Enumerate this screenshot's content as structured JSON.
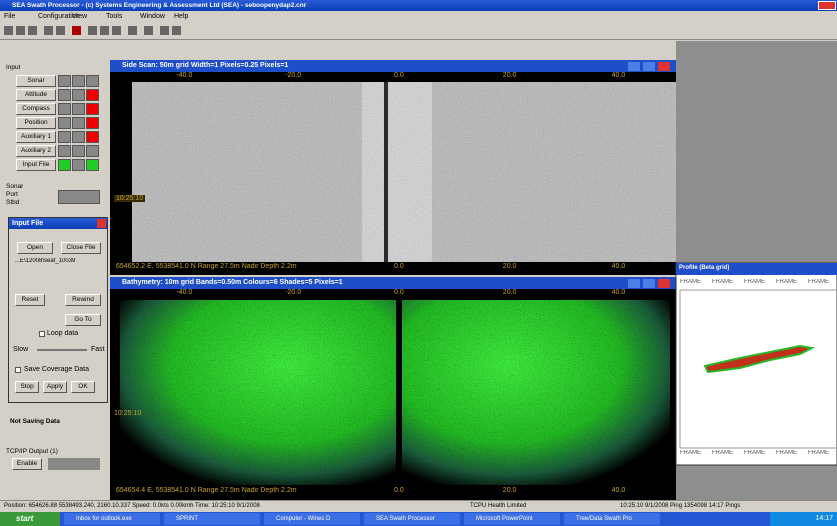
{
  "title_bar": {
    "title": "SEA Swath Processor - (c) Systems Engineering & Assessment Ltd (SEA) - seboopenydap2.cnr"
  },
  "menu": [
    "File",
    "Configuration",
    "View",
    "Tools",
    "Window",
    "Help"
  ],
  "input_panel": {
    "label": "Input",
    "buttons": [
      "Sonar",
      "Attitude",
      "Compass",
      "Position",
      "Auxiliary 1",
      "Auxiliary 2",
      "Input File"
    ],
    "sonar_label": "Sonar",
    "port": "Port",
    "stbd": "Stbd"
  },
  "input_dialog": {
    "title": "Input File",
    "open": "Open",
    "close": "Close File",
    "file": "...E\\12008\\seaf_10039",
    "reset": "Reset",
    "rewind": "Rewind",
    "goto": "Go To",
    "loop": "Loop data",
    "slow": "Slow",
    "fast": "Fast",
    "save": "Save Coverage Data",
    "stop": "Stop",
    "apply": "Apply",
    "ok": "OK"
  },
  "saving_status": "Not Saving Data",
  "tcp": {
    "label": "TCP/IP Output (1)",
    "button": "Enable"
  },
  "sidescan": {
    "title": "Side Scan: 50m grid Width=1 Pixels=0.25 Pixels=1",
    "axis": [
      "-40.0",
      "-20.0",
      "0.0",
      "20.0",
      "40.0"
    ],
    "time": "10:25:10",
    "status": "654652.2 E, 5538541.0 N Range 27.5m Nadir Depth 2.2m",
    "bottom_axis": [
      "0.0",
      "20.0",
      "40.0"
    ]
  },
  "bathymetry": {
    "title": "Bathymetry: 10m grid Bands=0.50m Colours=6 Shades=5 Pixels=1",
    "axis": [
      "-40.0",
      "-20.0",
      "0.0",
      "20.0",
      "40.0"
    ],
    "time": "10:25:10",
    "status": "654654.4 E, 5538541.0 N Range 27.5m Nadir Depth 2.2m",
    "bottom_axis": [
      "0.0",
      "20.0",
      "40.0"
    ]
  },
  "profile": {
    "title": "Profile (Beta grid)",
    "top_labels": [
      "FRAME",
      "FRAME",
      "FRAME",
      "FRAME",
      "FRAME"
    ],
    "bottom_labels": [
      "FRAME",
      "FRAME",
      "FRAME",
      "FRAME",
      "FRAME"
    ]
  },
  "status_bar": {
    "left": "Position: 654626.88 5538493.240, 2160.10.337 Speed: 0.0kts 0.00kmh Time: 10:25:10 9/1/2008",
    "mid": "TCPU Health Limited",
    "right": "10:25:10 9/1/2008   Ping 1354098   14:17 Pings"
  },
  "taskbar": {
    "start": "start",
    "items": [
      "Inbox for outlook.exe",
      "SPRINT",
      "Computer - Wines D",
      "SEA Swath Processor",
      "Microsoft PowerPoint",
      "Tree/Data Swath Pro"
    ],
    "clock": "14:17"
  }
}
